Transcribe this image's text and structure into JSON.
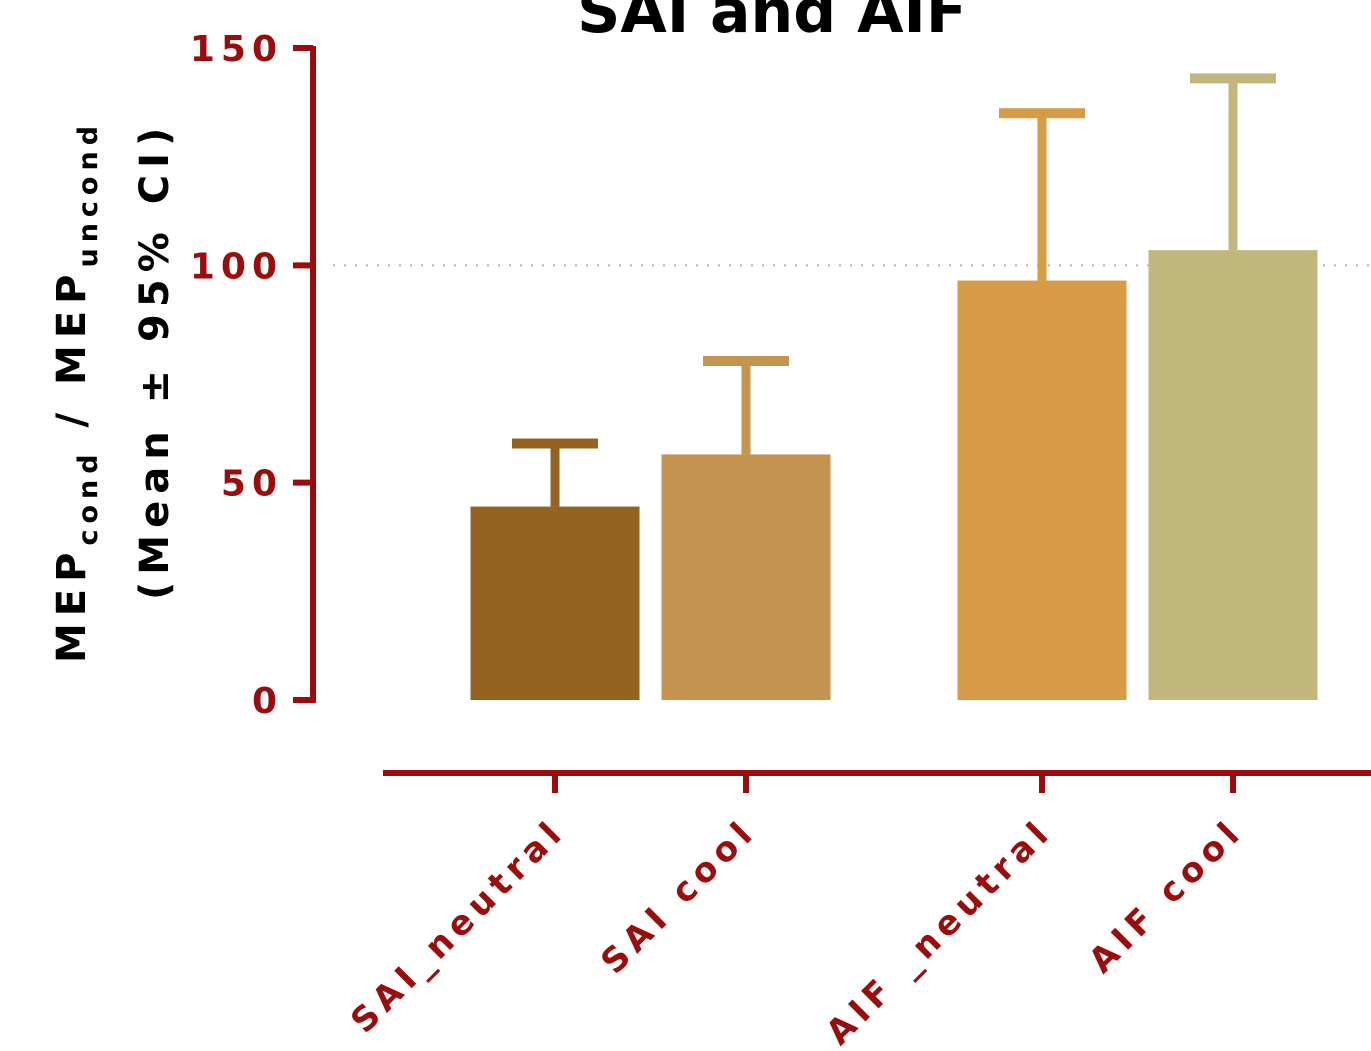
{
  "chart_data": {
    "type": "bar",
    "title": "SAI and AIF",
    "ylabel": {
      "line1_main_a": "MEP",
      "line1_sub_a": "cond",
      "line1_sep": " / ",
      "line1_main_b": "MEP",
      "line1_sub_b": "uncond",
      "line2": "(Mean ± 95% CI)"
    },
    "categories": [
      "SAI_neutral",
      "SAI cool",
      "AIF _neutral",
      "AIF cool"
    ],
    "values": [
      44.5,
      56.5,
      96.5,
      103.5
    ],
    "error_upper": [
      59,
      78,
      135,
      143
    ],
    "ylim": [
      0,
      150
    ],
    "yticks": [
      0,
      50,
      100,
      150
    ],
    "reference_line": 100,
    "grid": false,
    "colors": {
      "axis": "#9b0d0d",
      "reference": "#d9a0a0",
      "bars": [
        "#946320",
        "#c49450",
        "#d69b44",
        "#c1b77c"
      ],
      "errors": [
        "#946320",
        "#c49450",
        "#d69b44",
        "#c1b77c"
      ]
    }
  }
}
